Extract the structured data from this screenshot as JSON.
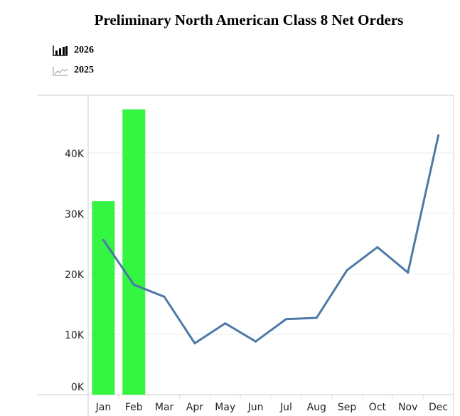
{
  "chart_data": {
    "type": "bar+line",
    "title": "Preliminary North American Class 8 Net Orders",
    "categories": [
      "Jan",
      "Feb",
      "Mar",
      "Apr",
      "May",
      "Jun",
      "Jul",
      "Aug",
      "Sep",
      "Oct",
      "Nov",
      "Dec"
    ],
    "series": [
      {
        "name": "2026",
        "type": "bar",
        "color": "#33f542",
        "values": [
          32000,
          47200,
          null,
          null,
          null,
          null,
          null,
          null,
          null,
          null,
          null,
          null
        ]
      },
      {
        "name": "2025",
        "type": "line",
        "color": "#4e79a7",
        "values": [
          25600,
          18200,
          16200,
          8500,
          11800,
          8800,
          12500,
          12700,
          20600,
          24400,
          20200,
          42900
        ]
      }
    ],
    "yticks": [
      "0K",
      "10K",
      "20K",
      "30K",
      "40K"
    ],
    "ylim": [
      0,
      48500
    ],
    "grid": true,
    "legend": "top-left"
  }
}
